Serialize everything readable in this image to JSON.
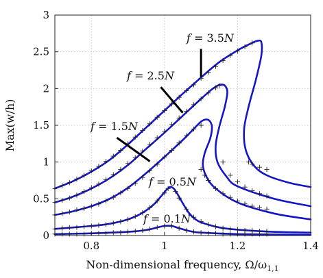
{
  "chart_data": {
    "type": "line",
    "title": "",
    "xlabel": "Non-dimensional frequency, Ω/ω",
    "xlabel_subscript": "1,1",
    "ylabel": "Max(w/h)",
    "xlim": [
      0.7,
      1.4
    ],
    "ylim": [
      0,
      3
    ],
    "xticks": [
      0.8,
      1.0,
      1.2,
      1.4
    ],
    "yticks": [
      0,
      0.5,
      1,
      1.5,
      2,
      2.5,
      3
    ],
    "xtick_labels": [
      "0.8",
      "1",
      "1.2",
      "1.4"
    ],
    "ytick_labels": [
      "0",
      "0.5",
      "1",
      "1.5",
      "2",
      "2.5",
      "3"
    ],
    "grid": true,
    "colors": {
      "curve": "#1515c8",
      "markers": "#222222",
      "grid": "#c8c8c8"
    },
    "series": [
      {
        "name": "f = 0.1N",
        "curve": [
          [
            0.7,
            0.02
          ],
          [
            0.8,
            0.03
          ],
          [
            0.9,
            0.05
          ],
          [
            0.95,
            0.075
          ],
          [
            0.98,
            0.11
          ],
          [
            1.0,
            0.13
          ],
          [
            1.02,
            0.13
          ],
          [
            1.04,
            0.1
          ],
          [
            1.07,
            0.06
          ],
          [
            1.1,
            0.04
          ],
          [
            1.2,
            0.02
          ],
          [
            1.4,
            0.01
          ]
        ],
        "markers": [
          [
            0.7,
            0.02
          ],
          [
            0.72,
            0.02
          ],
          [
            0.74,
            0.02
          ],
          [
            0.76,
            0.02
          ],
          [
            0.78,
            0.02
          ],
          [
            0.8,
            0.03
          ],
          [
            0.82,
            0.03
          ],
          [
            0.84,
            0.03
          ],
          [
            0.86,
            0.04
          ],
          [
            0.88,
            0.04
          ],
          [
            0.9,
            0.05
          ],
          [
            0.92,
            0.06
          ],
          [
            0.94,
            0.07
          ],
          [
            0.96,
            0.09
          ],
          [
            0.98,
            0.11
          ],
          [
            1.0,
            0.13
          ],
          [
            1.02,
            0.13
          ],
          [
            1.04,
            0.1
          ],
          [
            1.06,
            0.07
          ],
          [
            1.08,
            0.05
          ],
          [
            1.1,
            0.04
          ],
          [
            1.12,
            0.03
          ],
          [
            1.14,
            0.03
          ],
          [
            1.16,
            0.02
          ],
          [
            1.18,
            0.02
          ],
          [
            1.2,
            0.02
          ],
          [
            1.22,
            0.02
          ],
          [
            1.24,
            0.02
          ],
          [
            1.26,
            0.02
          ],
          [
            1.28,
            0.02
          ]
        ]
      },
      {
        "name": "f = 0.5N",
        "curve": [
          [
            0.7,
            0.09
          ],
          [
            0.75,
            0.11
          ],
          [
            0.8,
            0.13
          ],
          [
            0.85,
            0.16
          ],
          [
            0.9,
            0.22
          ],
          [
            0.94,
            0.31
          ],
          [
            0.97,
            0.42
          ],
          [
            0.99,
            0.53
          ],
          [
            1.005,
            0.62
          ],
          [
            1.015,
            0.66
          ],
          [
            1.025,
            0.64
          ],
          [
            1.035,
            0.57
          ],
          [
            1.05,
            0.44
          ],
          [
            1.065,
            0.32
          ],
          [
            1.08,
            0.24
          ],
          [
            1.1,
            0.18
          ],
          [
            1.15,
            0.11
          ],
          [
            1.2,
            0.08
          ],
          [
            1.3,
            0.05
          ],
          [
            1.4,
            0.04
          ]
        ],
        "markers": [
          [
            0.7,
            0.09
          ],
          [
            0.72,
            0.1
          ],
          [
            0.74,
            0.11
          ],
          [
            0.76,
            0.11
          ],
          [
            0.78,
            0.12
          ],
          [
            0.8,
            0.13
          ],
          [
            0.82,
            0.14
          ],
          [
            0.84,
            0.15
          ],
          [
            0.86,
            0.17
          ],
          [
            0.88,
            0.19
          ],
          [
            0.9,
            0.22
          ],
          [
            0.92,
            0.26
          ],
          [
            0.94,
            0.31
          ],
          [
            0.96,
            0.38
          ],
          [
            0.98,
            0.47
          ],
          [
            1.0,
            0.58
          ],
          [
            1.01,
            0.64
          ],
          [
            1.03,
            0.6
          ],
          [
            1.04,
            0.51
          ],
          [
            1.06,
            0.36
          ],
          [
            1.08,
            0.25
          ],
          [
            1.1,
            0.19
          ],
          [
            1.12,
            0.15
          ],
          [
            1.14,
            0.12
          ],
          [
            1.16,
            0.1
          ],
          [
            1.18,
            0.09
          ],
          [
            1.2,
            0.08
          ],
          [
            1.22,
            0.07
          ],
          [
            1.24,
            0.07
          ],
          [
            1.26,
            0.06
          ],
          [
            1.28,
            0.06
          ]
        ]
      },
      {
        "name": "f = 1.5N",
        "curve": [
          [
            0.7,
            0.28
          ],
          [
            0.75,
            0.33
          ],
          [
            0.8,
            0.4
          ],
          [
            0.85,
            0.5
          ],
          [
            0.9,
            0.65
          ],
          [
            0.95,
            0.85
          ],
          [
            1.0,
            1.07
          ],
          [
            1.05,
            1.3
          ],
          [
            1.08,
            1.45
          ],
          [
            1.1,
            1.55
          ],
          [
            1.115,
            1.58
          ],
          [
            1.125,
            1.55
          ],
          [
            1.13,
            1.47
          ],
          [
            1.125,
            1.32
          ],
          [
            1.11,
            1.12
          ],
          [
            1.105,
            0.96
          ],
          [
            1.115,
            0.8
          ],
          [
            1.14,
            0.64
          ],
          [
            1.2,
            0.45
          ],
          [
            1.3,
            0.3
          ],
          [
            1.4,
            0.22
          ]
        ],
        "markers": [
          [
            0.7,
            0.28
          ],
          [
            0.72,
            0.3
          ],
          [
            0.74,
            0.32
          ],
          [
            0.76,
            0.35
          ],
          [
            0.78,
            0.37
          ],
          [
            0.8,
            0.4
          ],
          [
            0.82,
            0.43
          ],
          [
            0.84,
            0.47
          ],
          [
            0.86,
            0.52
          ],
          [
            0.88,
            0.58
          ],
          [
            0.9,
            0.64
          ],
          [
            0.92,
            0.71
          ],
          [
            0.94,
            0.79
          ],
          [
            0.96,
            0.88
          ],
          [
            0.98,
            0.97
          ],
          [
            1.0,
            1.07
          ],
          [
            1.02,
            1.16
          ],
          [
            1.04,
            1.26
          ],
          [
            1.06,
            1.36
          ],
          [
            1.08,
            1.45
          ],
          [
            1.1,
            1.5
          ],
          [
            1.1,
            0.9
          ],
          [
            1.11,
            0.82
          ],
          [
            1.12,
            0.75
          ],
          [
            1.14,
            0.64
          ],
          [
            1.16,
            0.57
          ],
          [
            1.18,
            0.52
          ],
          [
            1.2,
            0.47
          ],
          [
            1.22,
            0.43
          ],
          [
            1.24,
            0.4
          ],
          [
            1.26,
            0.38
          ],
          [
            1.28,
            0.36
          ]
        ]
      },
      {
        "name": "f = 2.5N",
        "curve": [
          [
            0.7,
            0.45
          ],
          [
            0.75,
            0.53
          ],
          [
            0.8,
            0.64
          ],
          [
            0.85,
            0.78
          ],
          [
            0.9,
            0.96
          ],
          [
            0.95,
            1.18
          ],
          [
            1.0,
            1.4
          ],
          [
            1.05,
            1.63
          ],
          [
            1.1,
            1.86
          ],
          [
            1.13,
            1.99
          ],
          [
            1.15,
            2.05
          ],
          [
            1.165,
            2.04
          ],
          [
            1.172,
            1.95
          ],
          [
            1.165,
            1.75
          ],
          [
            1.15,
            1.48
          ],
          [
            1.14,
            1.22
          ],
          [
            1.145,
            1.0
          ],
          [
            1.17,
            0.8
          ],
          [
            1.2,
            0.67
          ],
          [
            1.3,
            0.5
          ],
          [
            1.4,
            0.4
          ]
        ],
        "markers": [
          [
            0.7,
            0.45
          ],
          [
            0.72,
            0.48
          ],
          [
            0.74,
            0.51
          ],
          [
            0.76,
            0.55
          ],
          [
            0.78,
            0.6
          ],
          [
            0.8,
            0.65
          ],
          [
            0.82,
            0.7
          ],
          [
            0.84,
            0.76
          ],
          [
            0.86,
            0.83
          ],
          [
            0.88,
            0.9
          ],
          [
            0.9,
            0.98
          ],
          [
            0.92,
            1.06
          ],
          [
            0.94,
            1.15
          ],
          [
            0.96,
            1.24
          ],
          [
            0.98,
            1.33
          ],
          [
            1.0,
            1.42
          ],
          [
            1.02,
            1.51
          ],
          [
            1.04,
            1.6
          ],
          [
            1.06,
            1.69
          ],
          [
            1.08,
            1.78
          ],
          [
            1.1,
            1.86
          ],
          [
            1.12,
            1.94
          ],
          [
            1.14,
            2.01
          ],
          [
            1.15,
            2.04
          ],
          [
            1.16,
            1.0
          ],
          [
            1.18,
            0.82
          ],
          [
            1.2,
            0.73
          ],
          [
            1.22,
            0.66
          ],
          [
            1.24,
            0.61
          ],
          [
            1.26,
            0.57
          ],
          [
            1.28,
            0.54
          ]
        ]
      },
      {
        "name": "f = 3.5N",
        "curve": [
          [
            0.7,
            0.64
          ],
          [
            0.75,
            0.74
          ],
          [
            0.8,
            0.87
          ],
          [
            0.85,
            1.03
          ],
          [
            0.9,
            1.24
          ],
          [
            0.95,
            1.47
          ],
          [
            1.0,
            1.7
          ],
          [
            1.05,
            1.93
          ],
          [
            1.1,
            2.15
          ],
          [
            1.15,
            2.36
          ],
          [
            1.2,
            2.52
          ],
          [
            1.235,
            2.61
          ],
          [
            1.255,
            2.65
          ],
          [
            1.265,
            2.63
          ],
          [
            1.265,
            2.45
          ],
          [
            1.25,
            2.12
          ],
          [
            1.23,
            1.75
          ],
          [
            1.218,
            1.45
          ],
          [
            1.222,
            1.17
          ],
          [
            1.245,
            0.95
          ],
          [
            1.28,
            0.82
          ],
          [
            1.34,
            0.72
          ],
          [
            1.4,
            0.66
          ]
        ],
        "markers": [
          [
            0.7,
            0.64
          ],
          [
            0.72,
            0.68
          ],
          [
            0.74,
            0.72
          ],
          [
            0.76,
            0.77
          ],
          [
            0.78,
            0.82
          ],
          [
            0.8,
            0.88
          ],
          [
            0.82,
            0.94
          ],
          [
            0.84,
            1.01
          ],
          [
            0.86,
            1.08
          ],
          [
            0.88,
            1.16
          ],
          [
            0.9,
            1.25
          ],
          [
            0.92,
            1.34
          ],
          [
            0.94,
            1.43
          ],
          [
            0.96,
            1.52
          ],
          [
            0.98,
            1.61
          ],
          [
            1.0,
            1.7
          ],
          [
            1.02,
            1.79
          ],
          [
            1.04,
            1.88
          ],
          [
            1.06,
            1.97
          ],
          [
            1.08,
            2.05
          ],
          [
            1.1,
            2.14
          ],
          [
            1.12,
            2.22
          ],
          [
            1.14,
            2.3
          ],
          [
            1.16,
            2.38
          ],
          [
            1.18,
            2.45
          ],
          [
            1.2,
            2.51
          ],
          [
            1.22,
            2.57
          ],
          [
            1.24,
            2.62
          ],
          [
            1.23,
            1.0
          ],
          [
            1.24,
            0.97
          ],
          [
            1.26,
            0.93
          ],
          [
            1.28,
            0.9
          ]
        ]
      }
    ],
    "annotations": [
      {
        "label": "f = 3.5N",
        "pointer_from": [
          1.1,
          2.54
        ],
        "pointer_to": [
          1.1,
          2.16
        ]
      },
      {
        "label": "f = 2.5N",
        "pointer_from": [
          0.99,
          2.02
        ],
        "pointer_to": [
          1.05,
          1.67
        ]
      },
      {
        "label": "f = 1.5N",
        "pointer_from": [
          0.87,
          1.33
        ],
        "pointer_to": [
          0.96,
          1.01
        ]
      },
      {
        "label": "f = 0.5N"
      },
      {
        "label": "f = 0.1N"
      }
    ]
  }
}
